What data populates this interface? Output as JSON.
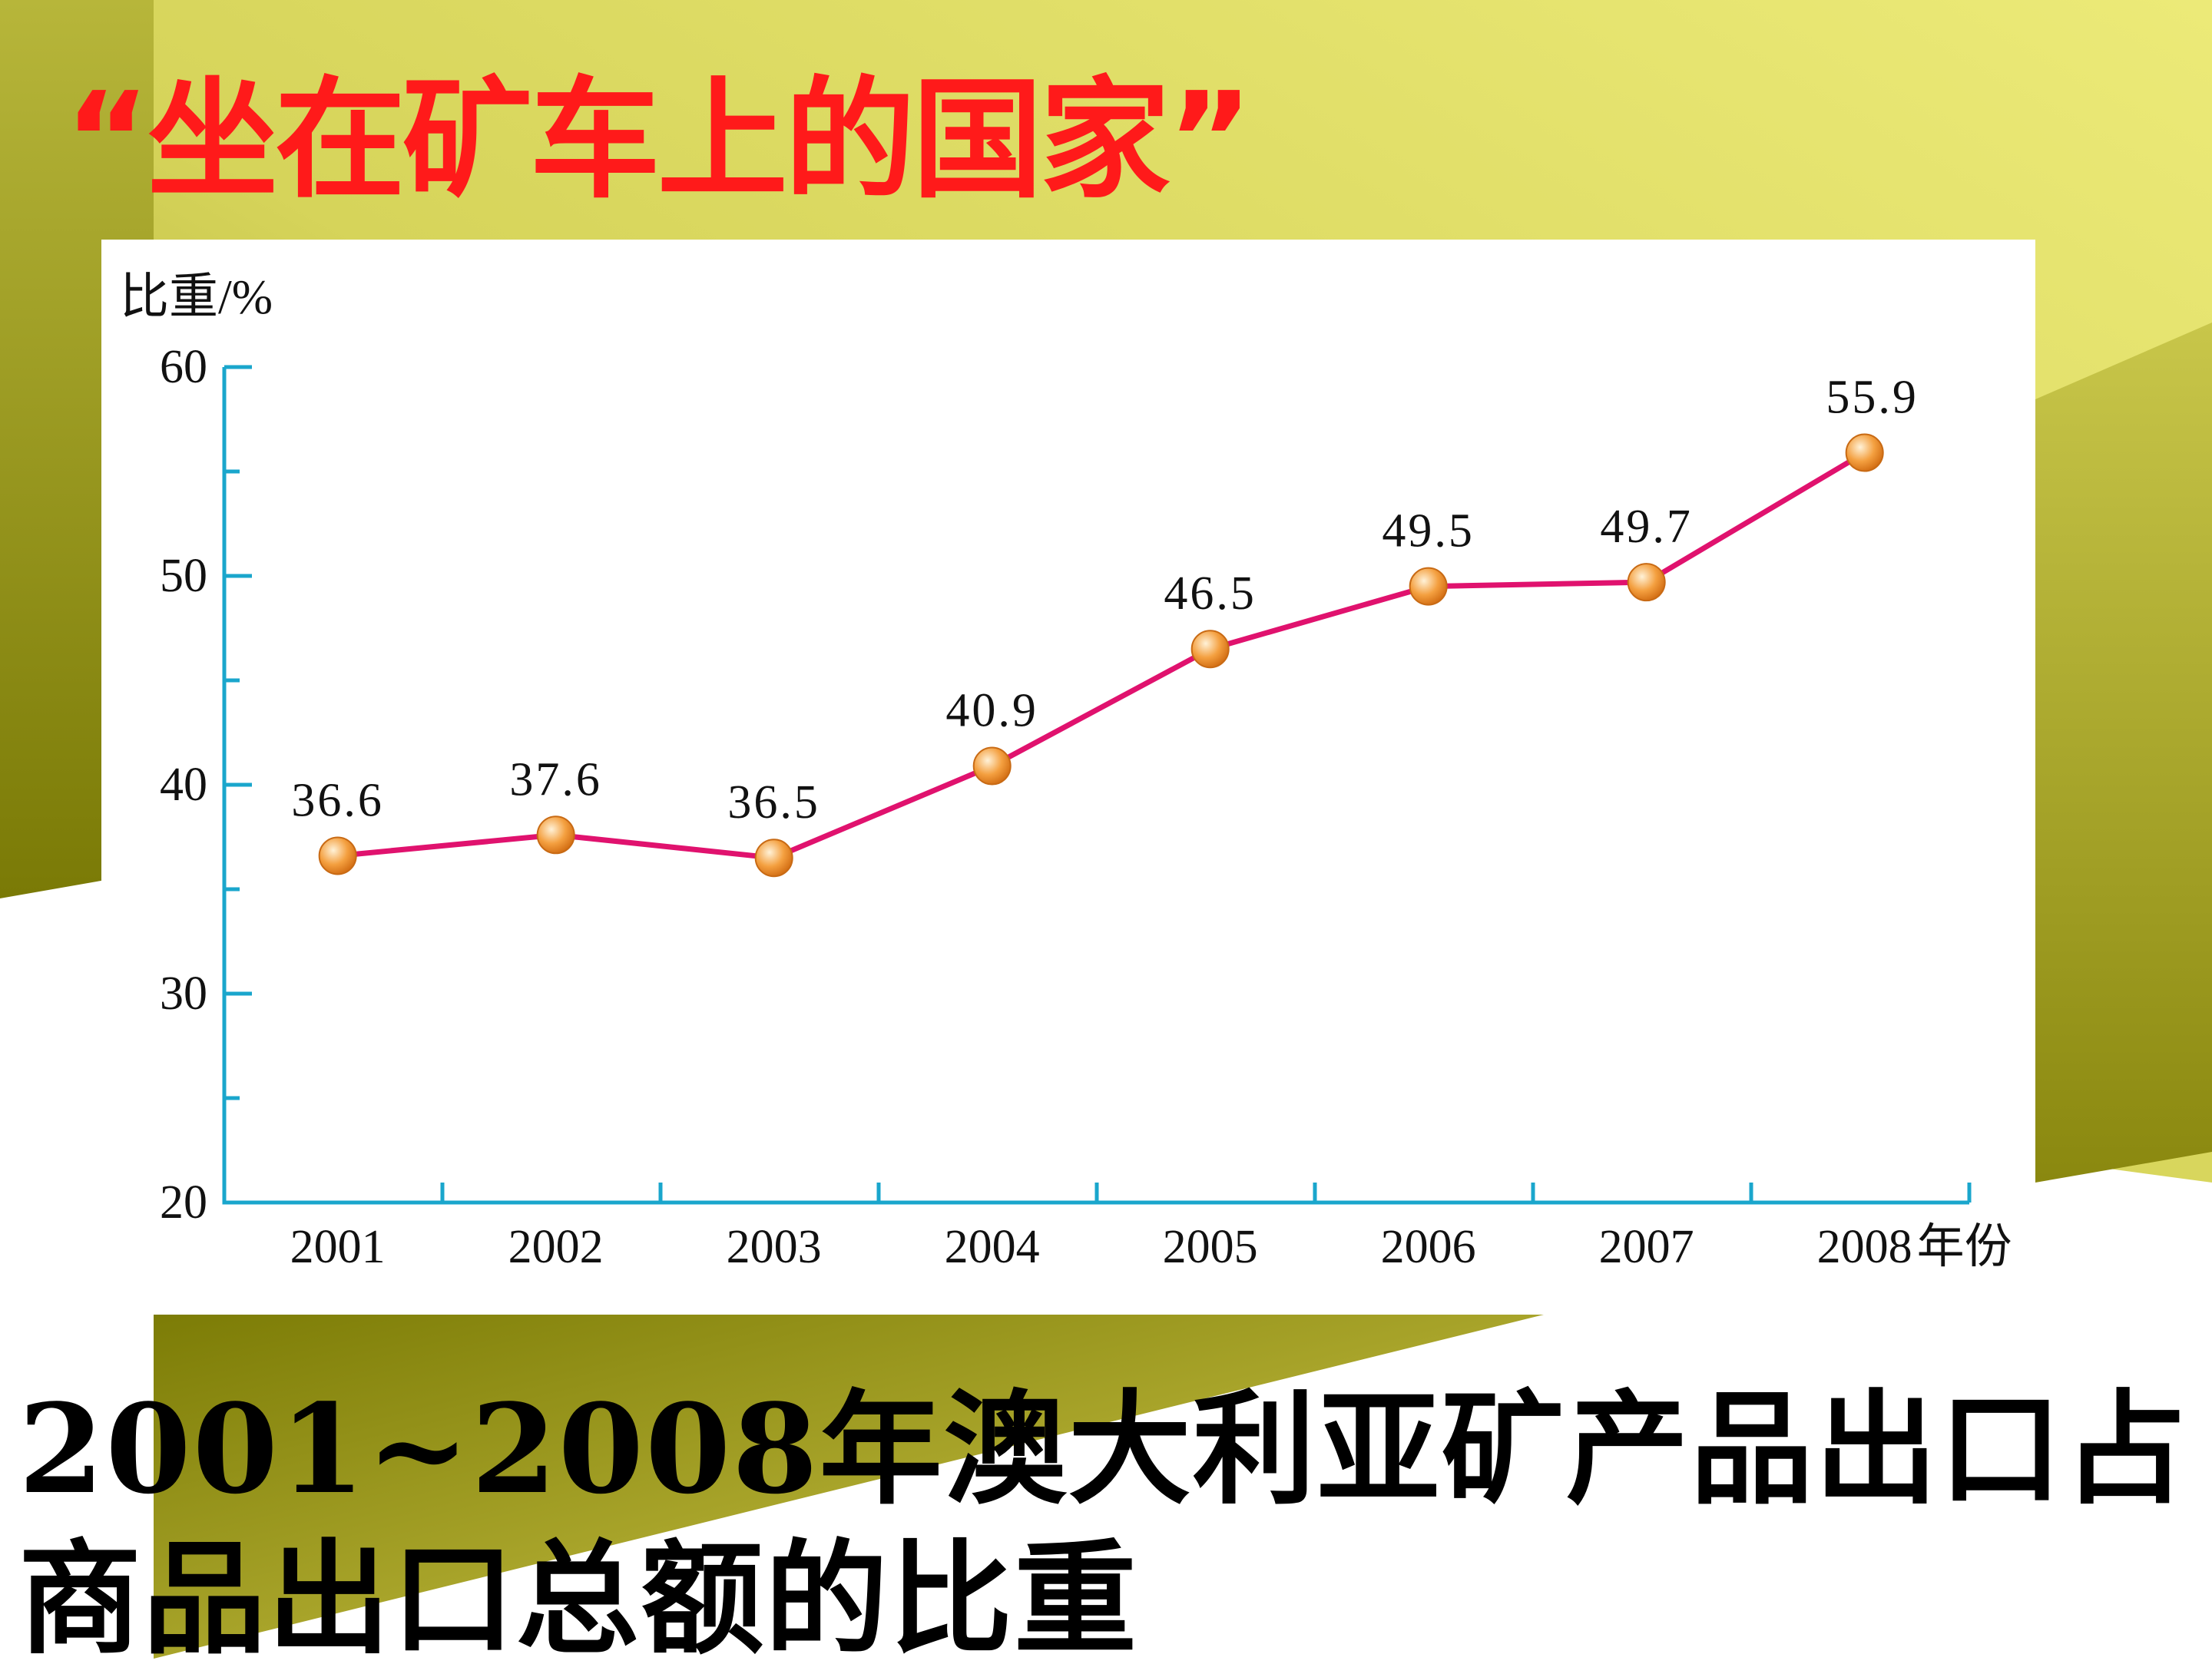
{
  "slide": {
    "title": "“坐在矿车上的国家”",
    "caption": "2001~2008年澳大利亚矿产品出口占商品出口总额的比重"
  },
  "colors": {
    "background_dark": "#7d7d08",
    "background_light": "#e6e26a",
    "title": "#ff1a1a",
    "axis": "#1aa6cc",
    "line": "#e0126e",
    "marker": "#f4a040"
  },
  "chart_data": {
    "type": "line",
    "title": "",
    "ylabel": "比重/%",
    "xlabel": "年份",
    "ylim": [
      20,
      60
    ],
    "yticks": [
      20,
      30,
      40,
      50,
      60
    ],
    "categories": [
      "2001",
      "2002",
      "2003",
      "2004",
      "2005",
      "2006",
      "2007",
      "2008"
    ],
    "series": [
      {
        "values": [
          36.6,
          37.6,
          36.5,
          40.9,
          46.5,
          49.5,
          49.7,
          55.9
        ]
      }
    ],
    "data_labels": [
      "36.6",
      "37.6",
      "36.5",
      "40.9",
      "46.5",
      "49.5",
      "49.7",
      "55.9"
    ],
    "grid": false,
    "legend": "none"
  }
}
